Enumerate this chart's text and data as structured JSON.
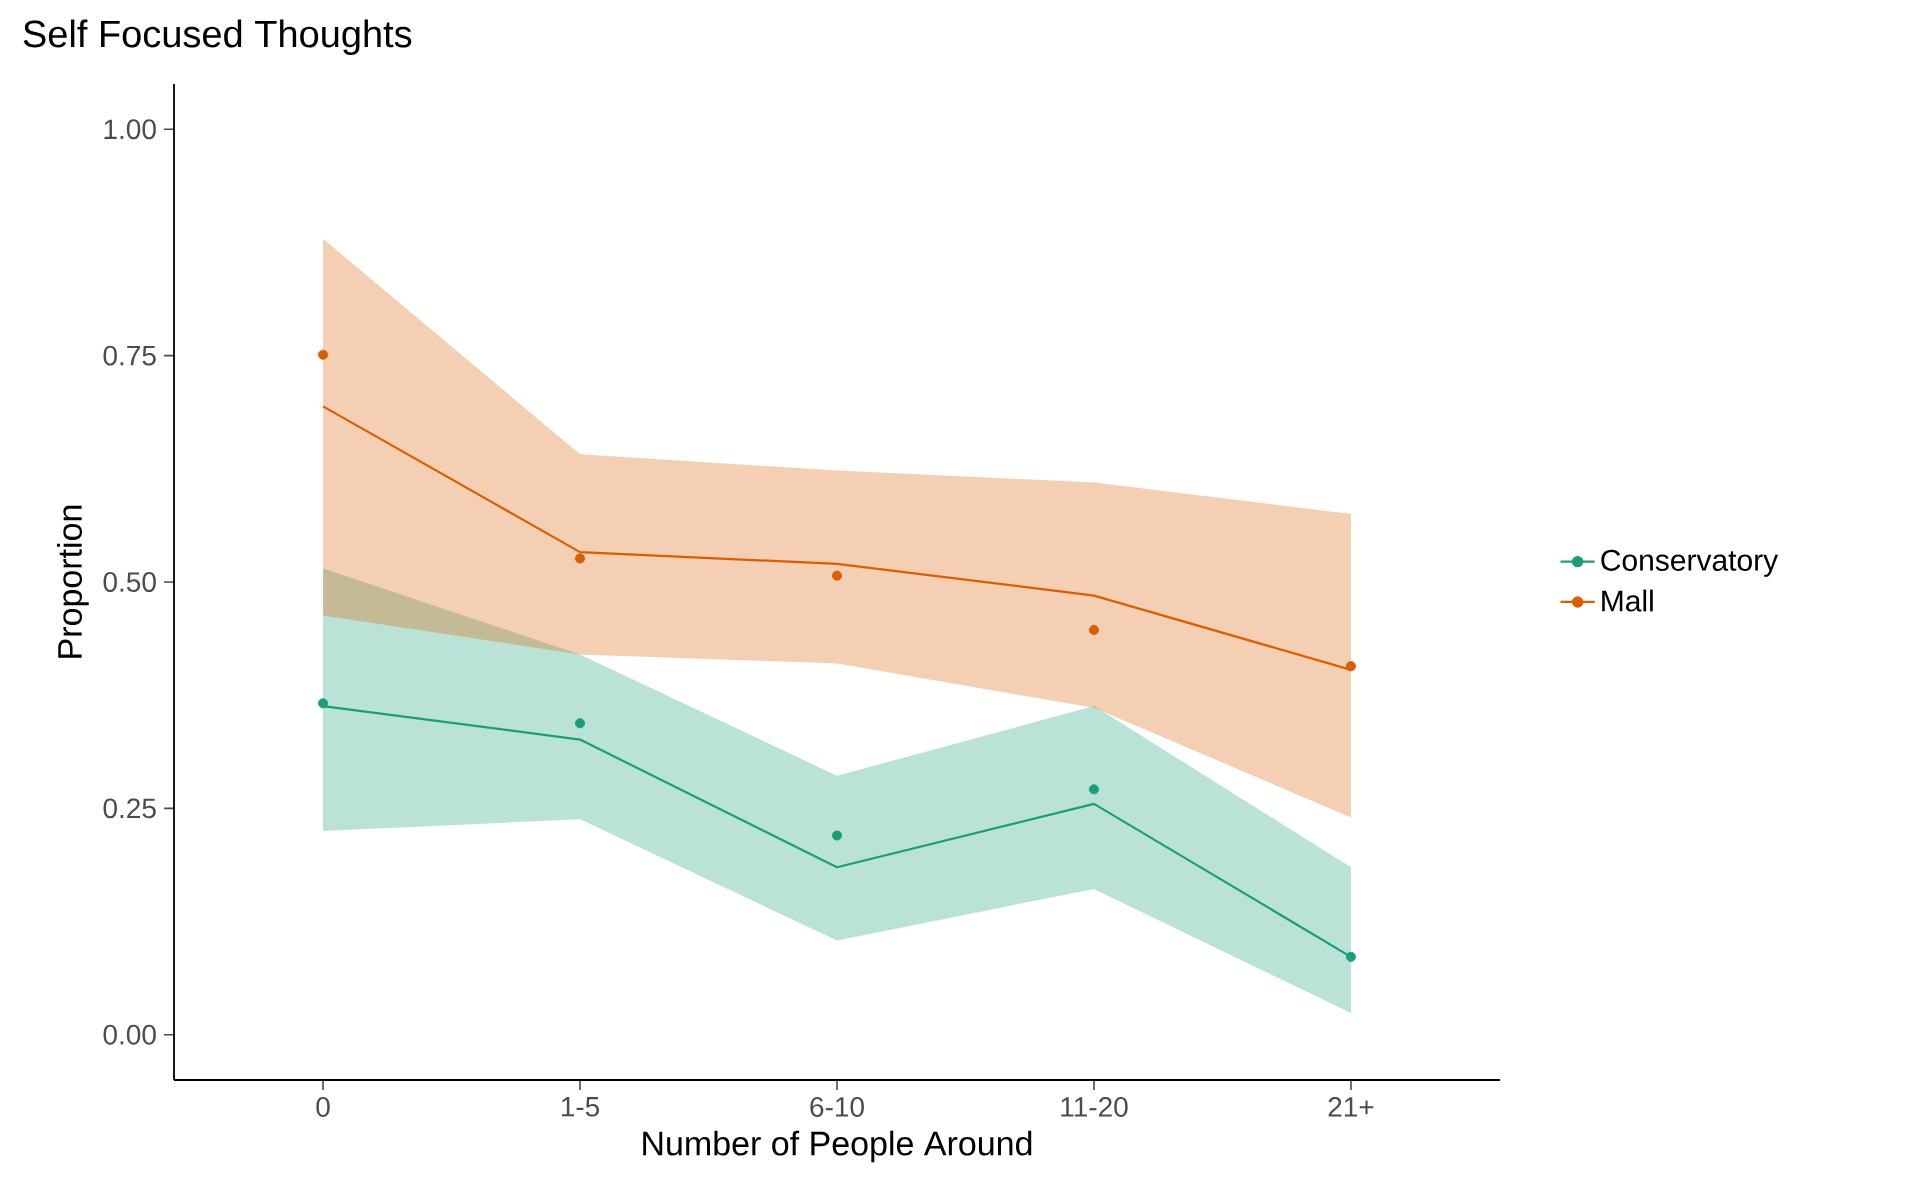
{
  "chart_data": {
    "type": "line",
    "title": "Self Focused Thoughts",
    "xlabel": "Number of People Around",
    "ylabel": "Proportion",
    "categories": [
      "0",
      "1-5",
      "6-10",
      "11-20",
      "21+"
    ],
    "series": [
      {
        "name": "Conservatory",
        "color": "#1b9e77",
        "values": [
          0.363,
          0.326,
          0.185,
          0.255,
          0.086
        ],
        "lower": [
          0.225,
          0.238,
          0.104,
          0.161,
          0.024
        ],
        "upper": [
          0.515,
          0.42,
          0.286,
          0.363,
          0.185
        ]
      },
      {
        "name": "Mall",
        "color": "#d95f02",
        "values": [
          0.694,
          0.533,
          0.52,
          0.485,
          0.403
        ],
        "lower": [
          0.463,
          0.42,
          0.41,
          0.361,
          0.24
        ],
        "upper": [
          0.879,
          0.641,
          0.623,
          0.61,
          0.575
        ]
      },
      {
        "type": "scatter",
        "marker": "circle",
        "color": "#1b9e77",
        "values": [
          0.366,
          0.344,
          0.22,
          0.271,
          0.086
        ]
      },
      {
        "type": "scatter",
        "marker": "circle",
        "color": "#d95f02",
        "values": [
          0.751,
          0.526,
          0.507,
          0.447,
          0.407
        ]
      }
    ],
    "ylim": [
      -0.05,
      1.05
    ],
    "yticks": [
      {
        "value": 0,
        "label": "0.00"
      },
      {
        "value": 0.25,
        "label": "0.25"
      },
      {
        "value": 0.5,
        "label": "0.50"
      },
      {
        "value": 0.75,
        "label": "0.75"
      },
      {
        "value": 1,
        "label": "1.00"
      }
    ],
    "legend": "right",
    "grid": false
  }
}
